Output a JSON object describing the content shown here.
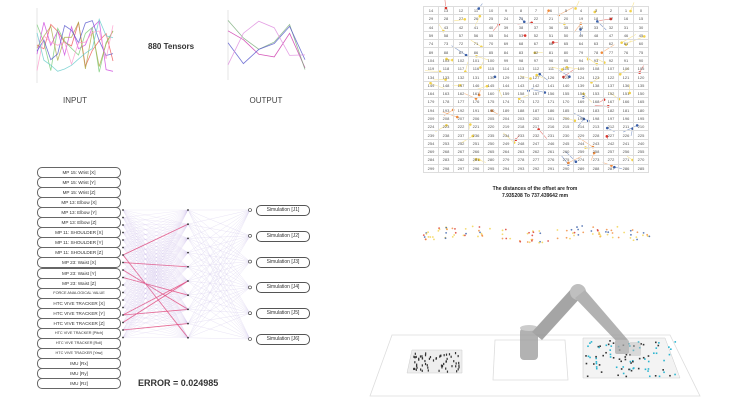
{
  "input_label": "INPUT",
  "output_label": "OUTPUT",
  "tensors_label": "880 Tensors",
  "input_features": [
    "MP 15: Wrist [X]",
    "MP 15: Wrist [Y]",
    "MP 15: Wrist [Z]",
    "MP 13: Elbow [X]",
    "MP 13: Elbow [Y]",
    "MP 13: Elbow [Z]",
    "MP 11: SHOULDER [X]",
    "MP 11: SHOULDER [Y]",
    "MP 11: SHOULDER [Z]",
    "MP 23: Waist [X]",
    "MP 23: Waist [Y]",
    "MP 23: Waist [Z]",
    "FORCE ANALOGICAL VALUE",
    "HTC VIVE TRACKER [X]",
    "HTC VIVE TRACKER [Y]",
    "HTC VIVE TRACKER [Z]",
    "HTC VIVE TRACKER [Pitch]",
    "HTC VIVE TRACKER [Roll]",
    "HTC VIVE TRACKER [Yaw]",
    "IMU [Rx]",
    "IMU [Ry]",
    "IMU [Rz]"
  ],
  "outputs": [
    "Simulation [J1]",
    "Simulation [J2]",
    "Simulation [J3]",
    "Simulation [J4]",
    "Simulation [J5]",
    "Simulation [J6]"
  ],
  "error_text": "ERROR = 0.024985",
  "grid_rows": [
    [
      14,
      13,
      12,
      11,
      10,
      9,
      8,
      7,
      6,
      5,
      4,
      3,
      2,
      1,
      0
    ],
    [
      29,
      28,
      27,
      26,
      25,
      24,
      23,
      22,
      21,
      20,
      19,
      18,
      17,
      16,
      15
    ],
    [
      44,
      43,
      42,
      41,
      40,
      39,
      38,
      37,
      36,
      35,
      34,
      33,
      32,
      31,
      30
    ],
    [
      59,
      58,
      57,
      56,
      55,
      54,
      53,
      52,
      51,
      50,
      49,
      48,
      47,
      46,
      45
    ],
    [
      74,
      73,
      72,
      71,
      70,
      69,
      68,
      67,
      66,
      65,
      64,
      63,
      62,
      61,
      60
    ],
    [
      89,
      88,
      87,
      86,
      85,
      84,
      83,
      82,
      81,
      80,
      79,
      78,
      77,
      76,
      75
    ],
    [
      104,
      103,
      102,
      101,
      100,
      99,
      98,
      97,
      96,
      95,
      94,
      93,
      92,
      91,
      90
    ],
    [
      119,
      118,
      117,
      116,
      115,
      114,
      113,
      112,
      111,
      110,
      109,
      108,
      107,
      106,
      105
    ],
    [
      134,
      133,
      132,
      131,
      130,
      129,
      128,
      127,
      126,
      125,
      124,
      123,
      122,
      121,
      120
    ],
    [
      149,
      148,
      147,
      146,
      145,
      144,
      143,
      142,
      141,
      140,
      139,
      138,
      137,
      136,
      135
    ],
    [
      164,
      163,
      162,
      161,
      160,
      159,
      158,
      157,
      156,
      155,
      154,
      153,
      152,
      151,
      150
    ],
    [
      179,
      178,
      177,
      176,
      175,
      174,
      173,
      172,
      171,
      170,
      169,
      168,
      167,
      166,
      165
    ],
    [
      194,
      193,
      192,
      191,
      190,
      189,
      188,
      187,
      186,
      185,
      184,
      183,
      182,
      181,
      180
    ],
    [
      209,
      208,
      207,
      206,
      205,
      204,
      203,
      202,
      201,
      200,
      199,
      198,
      197,
      196,
      195
    ],
    [
      224,
      223,
      222,
      221,
      220,
      219,
      218,
      217,
      216,
      215,
      214,
      213,
      212,
      211,
      210
    ],
    [
      239,
      238,
      237,
      236,
      235,
      234,
      233,
      232,
      231,
      230,
      229,
      228,
      227,
      226,
      225
    ],
    [
      254,
      253,
      252,
      251,
      250,
      249,
      248,
      247,
      246,
      245,
      244,
      243,
      242,
      241,
      240
    ],
    [
      269,
      268,
      267,
      266,
      265,
      264,
      263,
      262,
      261,
      260,
      259,
      258,
      257,
      256,
      255
    ],
    [
      284,
      283,
      282,
      281,
      280,
      279,
      278,
      277,
      276,
      275,
      274,
      273,
      272,
      271,
      270
    ],
    [
      299,
      298,
      297,
      296,
      295,
      294,
      293,
      292,
      291,
      290,
      289,
      288,
      287,
      286,
      285
    ]
  ],
  "distance_line1": "The distances of the offset are from",
  "distance_line2": "7.935208 To 737.439642 mm",
  "colors": {
    "connection": "#c9b8e8",
    "strong_connection": "#e0457a",
    "offset_yellow": "#f2d24a",
    "offset_red": "#d9342b",
    "offset_blue": "#3a5fa8",
    "cube": "#2bb5d0"
  }
}
